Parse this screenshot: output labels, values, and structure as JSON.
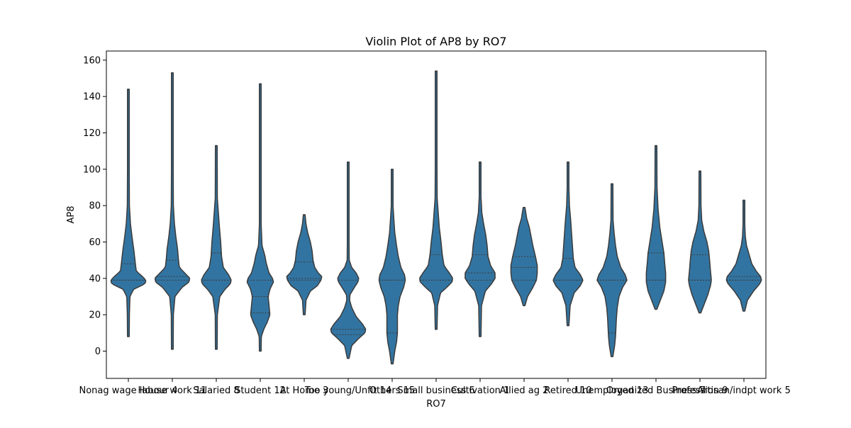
{
  "chart_data": {
    "type": "violin",
    "title": "Violin Plot of AP8 by RO7",
    "xlabel": "RO7",
    "ylabel": "AP8",
    "ylim": [
      -15,
      165
    ],
    "yticks": [
      0,
      20,
      40,
      60,
      80,
      100,
      120,
      140,
      160
    ],
    "grid": false,
    "legend": "none",
    "colors": {
      "violin_fill": "#3274a1",
      "violin_edge": "#3b3b3b",
      "quartile_line": "#3b3b3b"
    },
    "categories": [
      "Nonag wage labour 4",
      "House work 11",
      "Salaried 8",
      "Student 12",
      "At Home 3",
      "Too young/Unfit 14",
      "Others 15",
      "Small business 6",
      "Cultivation 1",
      "Allied ag 2",
      "Retired 10",
      "Unemployed 13",
      "Organized Business 7",
      "Profession 9",
      "Artisan/indpt work 5"
    ],
    "violins": [
      {
        "min": 8,
        "max": 144,
        "q1": 39,
        "median": 39,
        "q3": 48,
        "shape": [
          [
            8,
            0.05
          ],
          [
            20,
            0.06
          ],
          [
            30,
            0.09
          ],
          [
            34,
            0.3
          ],
          [
            37,
            0.95
          ],
          [
            39,
            1.0
          ],
          [
            41,
            0.8
          ],
          [
            44,
            0.45
          ],
          [
            48,
            0.4
          ],
          [
            55,
            0.32
          ],
          [
            62,
            0.22
          ],
          [
            70,
            0.12
          ],
          [
            80,
            0.06
          ],
          [
            100,
            0.05
          ],
          [
            144,
            0.05
          ]
        ]
      },
      {
        "min": 1,
        "max": 153,
        "q1": 39,
        "median": 41,
        "q3": 50,
        "shape": [
          [
            1,
            0.05
          ],
          [
            20,
            0.06
          ],
          [
            30,
            0.15
          ],
          [
            35,
            0.55
          ],
          [
            38,
            0.95
          ],
          [
            40,
            1.0
          ],
          [
            43,
            0.7
          ],
          [
            46,
            0.4
          ],
          [
            50,
            0.35
          ],
          [
            56,
            0.3
          ],
          [
            63,
            0.2
          ],
          [
            70,
            0.12
          ],
          [
            80,
            0.06
          ],
          [
            100,
            0.05
          ],
          [
            153,
            0.05
          ]
        ]
      },
      {
        "min": 1,
        "max": 113,
        "q1": 39,
        "median": 39,
        "q3": 54,
        "shape": [
          [
            1,
            0.05
          ],
          [
            20,
            0.06
          ],
          [
            30,
            0.2
          ],
          [
            34,
            0.5
          ],
          [
            37,
            0.8
          ],
          [
            39,
            0.85
          ],
          [
            42,
            0.7
          ],
          [
            46,
            0.4
          ],
          [
            52,
            0.3
          ],
          [
            60,
            0.25
          ],
          [
            68,
            0.18
          ],
          [
            76,
            0.12
          ],
          [
            84,
            0.06
          ],
          [
            113,
            0.05
          ]
        ]
      },
      {
        "min": 0,
        "max": 147,
        "q1": 21,
        "median": 30,
        "q3": 39,
        "shape": [
          [
            0,
            0.05
          ],
          [
            8,
            0.06
          ],
          [
            12,
            0.2
          ],
          [
            16,
            0.4
          ],
          [
            20,
            0.55
          ],
          [
            25,
            0.5
          ],
          [
            30,
            0.45
          ],
          [
            34,
            0.55
          ],
          [
            38,
            0.75
          ],
          [
            40,
            0.7
          ],
          [
            43,
            0.5
          ],
          [
            48,
            0.35
          ],
          [
            53,
            0.25
          ],
          [
            58,
            0.1
          ],
          [
            70,
            0.05
          ],
          [
            147,
            0.05
          ]
        ]
      },
      {
        "min": 20,
        "max": 75,
        "q1": 39,
        "median": 40,
        "q3": 49,
        "shape": [
          [
            20,
            0.05
          ],
          [
            28,
            0.1
          ],
          [
            33,
            0.35
          ],
          [
            36,
            0.75
          ],
          [
            39,
            0.95
          ],
          [
            41,
            1.0
          ],
          [
            43,
            0.8
          ],
          [
            46,
            0.6
          ],
          [
            50,
            0.5
          ],
          [
            55,
            0.45
          ],
          [
            60,
            0.35
          ],
          [
            65,
            0.2
          ],
          [
            70,
            0.1
          ],
          [
            75,
            0.05
          ]
        ]
      },
      {
        "min": -4,
        "max": 104,
        "q1": 9,
        "median": 12,
        "q3": 39,
        "shape": [
          [
            -4,
            0.05
          ],
          [
            3,
            0.2
          ],
          [
            7,
            0.6
          ],
          [
            10,
            0.95
          ],
          [
            12,
            1.0
          ],
          [
            15,
            0.8
          ],
          [
            19,
            0.45
          ],
          [
            24,
            0.2
          ],
          [
            28,
            0.08
          ],
          [
            31,
            0.1
          ],
          [
            35,
            0.35
          ],
          [
            38,
            0.55
          ],
          [
            40,
            0.6
          ],
          [
            43,
            0.45
          ],
          [
            46,
            0.2
          ],
          [
            50,
            0.06
          ],
          [
            60,
            0.05
          ],
          [
            104,
            0.05
          ]
        ]
      },
      {
        "min": -7,
        "max": 100,
        "q1": 10,
        "median": 39,
        "q3": 39,
        "shape": [
          [
            -7,
            0.05
          ],
          [
            0,
            0.15
          ],
          [
            5,
            0.25
          ],
          [
            10,
            0.3
          ],
          [
            15,
            0.3
          ],
          [
            20,
            0.3
          ],
          [
            25,
            0.35
          ],
          [
            30,
            0.45
          ],
          [
            35,
            0.65
          ],
          [
            39,
            0.75
          ],
          [
            42,
            0.7
          ],
          [
            46,
            0.5
          ],
          [
            52,
            0.35
          ],
          [
            58,
            0.25
          ],
          [
            65,
            0.15
          ],
          [
            72,
            0.1
          ],
          [
            80,
            0.05
          ],
          [
            100,
            0.05
          ]
        ]
      },
      {
        "min": 12,
        "max": 154,
        "q1": 39,
        "median": 39,
        "q3": 53,
        "shape": [
          [
            12,
            0.05
          ],
          [
            25,
            0.08
          ],
          [
            32,
            0.25
          ],
          [
            35,
            0.6
          ],
          [
            38,
            0.9
          ],
          [
            40,
            0.95
          ],
          [
            43,
            0.75
          ],
          [
            47,
            0.45
          ],
          [
            53,
            0.35
          ],
          [
            60,
            0.28
          ],
          [
            68,
            0.18
          ],
          [
            76,
            0.12
          ],
          [
            84,
            0.06
          ],
          [
            100,
            0.05
          ],
          [
            154,
            0.05
          ]
        ]
      },
      {
        "min": 8,
        "max": 104,
        "q1": 39,
        "median": 43,
        "q3": 53,
        "shape": [
          [
            8,
            0.05
          ],
          [
            25,
            0.08
          ],
          [
            33,
            0.3
          ],
          [
            37,
            0.65
          ],
          [
            40,
            0.85
          ],
          [
            43,
            0.85
          ],
          [
            47,
            0.6
          ],
          [
            52,
            0.45
          ],
          [
            58,
            0.4
          ],
          [
            64,
            0.32
          ],
          [
            70,
            0.2
          ],
          [
            76,
            0.1
          ],
          [
            85,
            0.05
          ],
          [
            104,
            0.05
          ]
        ]
      },
      {
        "min": 25,
        "max": 79,
        "q1": 39,
        "median": 46,
        "q3": 52,
        "shape": [
          [
            25,
            0.05
          ],
          [
            30,
            0.2
          ],
          [
            35,
            0.5
          ],
          [
            39,
            0.7
          ],
          [
            43,
            0.75
          ],
          [
            47,
            0.75
          ],
          [
            52,
            0.65
          ],
          [
            58,
            0.5
          ],
          [
            63,
            0.4
          ],
          [
            68,
            0.3
          ],
          [
            73,
            0.15
          ],
          [
            79,
            0.05
          ]
        ]
      },
      {
        "min": 14,
        "max": 104,
        "q1": 39,
        "median": 39,
        "q3": 51,
        "shape": [
          [
            14,
            0.05
          ],
          [
            25,
            0.12
          ],
          [
            32,
            0.35
          ],
          [
            36,
            0.7
          ],
          [
            39,
            0.85
          ],
          [
            42,
            0.7
          ],
          [
            46,
            0.4
          ],
          [
            51,
            0.3
          ],
          [
            58,
            0.25
          ],
          [
            65,
            0.2
          ],
          [
            72,
            0.15
          ],
          [
            80,
            0.08
          ],
          [
            90,
            0.05
          ],
          [
            104,
            0.05
          ]
        ]
      },
      {
        "min": -3,
        "max": 92,
        "q1": 10,
        "median": 39,
        "q3": 39,
        "shape": [
          [
            -3,
            0.05
          ],
          [
            3,
            0.15
          ],
          [
            8,
            0.2
          ],
          [
            12,
            0.22
          ],
          [
            18,
            0.25
          ],
          [
            24,
            0.3
          ],
          [
            30,
            0.4
          ],
          [
            35,
            0.6
          ],
          [
            39,
            0.85
          ],
          [
            42,
            0.75
          ],
          [
            46,
            0.5
          ],
          [
            52,
            0.3
          ],
          [
            58,
            0.2
          ],
          [
            65,
            0.12
          ],
          [
            72,
            0.06
          ],
          [
            92,
            0.05
          ]
        ]
      },
      {
        "min": 23,
        "max": 113,
        "q1": 39,
        "median": 39,
        "q3": 54,
        "shape": [
          [
            23,
            0.05
          ],
          [
            28,
            0.25
          ],
          [
            33,
            0.45
          ],
          [
            38,
            0.55
          ],
          [
            43,
            0.55
          ],
          [
            48,
            0.5
          ],
          [
            54,
            0.45
          ],
          [
            60,
            0.35
          ],
          [
            68,
            0.22
          ],
          [
            78,
            0.12
          ],
          [
            90,
            0.06
          ],
          [
            113,
            0.05
          ]
        ]
      },
      {
        "min": 21,
        "max": 99,
        "q1": 39,
        "median": 39,
        "q3": 53,
        "shape": [
          [
            21,
            0.05
          ],
          [
            26,
            0.25
          ],
          [
            31,
            0.45
          ],
          [
            36,
            0.6
          ],
          [
            39,
            0.65
          ],
          [
            44,
            0.6
          ],
          [
            50,
            0.55
          ],
          [
            55,
            0.5
          ],
          [
            60,
            0.4
          ],
          [
            66,
            0.22
          ],
          [
            72,
            0.1
          ],
          [
            80,
            0.06
          ],
          [
            99,
            0.05
          ]
        ]
      },
      {
        "min": 22,
        "max": 83,
        "q1": 39,
        "median": 39,
        "q3": 41,
        "shape": [
          [
            22,
            0.05
          ],
          [
            28,
            0.2
          ],
          [
            33,
            0.55
          ],
          [
            37,
            0.9
          ],
          [
            39,
            1.0
          ],
          [
            41,
            0.95
          ],
          [
            44,
            0.7
          ],
          [
            48,
            0.45
          ],
          [
            53,
            0.3
          ],
          [
            58,
            0.15
          ],
          [
            63,
            0.08
          ],
          [
            70,
            0.05
          ],
          [
            83,
            0.05
          ]
        ]
      }
    ]
  }
}
